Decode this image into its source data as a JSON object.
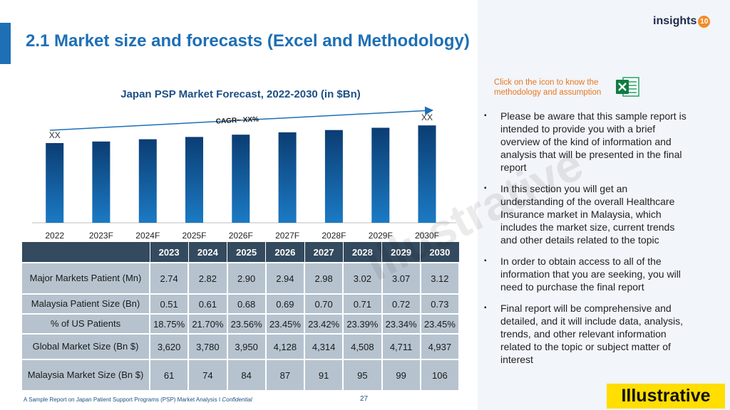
{
  "page": {
    "title": "2.1 Market size and forecasts (Excel and Methodology)",
    "logo_text": "insights",
    "logo_badge": "10",
    "footer_text": "A Sample Report on Japan Patient Support Programs (PSP) Market Analysis I ",
    "footer_confidential": "Confidential",
    "page_number": "27",
    "stamp": "Illustrative",
    "watermark": "Illustrative"
  },
  "colors": {
    "accent_blue": "#1e6fb5",
    "bar_top": "#0b3d73",
    "bar_bottom": "#1b7ac4",
    "table_header": "#344a5e",
    "table_cell": "#b6c3cf",
    "note_orange": "#e87722",
    "stamp_yellow": "#ffde00"
  },
  "chart_data": {
    "type": "bar",
    "title": "Japan PSP Market Forecast, 2022-2030 (in $Bn)",
    "categories": [
      "2022",
      "2023F",
      "2024F",
      "2025F",
      "2026F",
      "2027F",
      "2028F",
      "2029F",
      "2030F"
    ],
    "values": [
      104,
      106,
      109,
      112,
      115,
      118,
      121,
      124,
      127
    ],
    "value_labels": [
      "XX",
      "",
      "",
      "",
      "",
      "",
      "",
      "",
      "XX"
    ],
    "cagr_label": "CAGR~ XX%",
    "ylim": [
      0,
      130
    ],
    "xlabel": "",
    "ylabel": "",
    "grid": false
  },
  "methodology": {
    "note": "Click on the icon to know the methodology and assumption",
    "icon": "excel-icon"
  },
  "bullets": [
    "Please be aware that this sample report is intended to provide you with a brief overview of the kind of information and analysis that will be presented in the final report",
    "In this section you will get an understanding of the overall Healthcare Insurance market in Malaysia, which includes the market size, current trends and other details related to the topic",
    "In order to obtain access to all of the information that you are seeking, you will need to purchase the final report",
    "Final report will be comprehensive and detailed, and it will include data, analysis, trends, and other relevant information related to the topic or subject matter of interest"
  ],
  "table": {
    "headers": [
      "",
      "2023",
      "2024",
      "2025",
      "2026",
      "2027",
      "2028",
      "2029",
      "2030"
    ],
    "rows": [
      {
        "label": "Major Markets Patient (Mn)",
        "values": [
          "2.74",
          "2.82",
          "2.90",
          "2.94",
          "2.98",
          "3.02",
          "3.07",
          "3.12"
        ]
      },
      {
        "label": "Malaysia Patient Size (Bn)",
        "values": [
          "0.51",
          "0.61",
          "0.68",
          "0.69",
          "0.70",
          "0.71",
          "0.72",
          "0.73"
        ]
      },
      {
        "label": "% of US Patients",
        "values": [
          "18.75%",
          "21.70%",
          "23.56%",
          "23.45%",
          "23.42%",
          "23.39%",
          "23.34%",
          "23.45%"
        ]
      },
      {
        "label": "Global Market Size (Bn $)",
        "values": [
          "3,620",
          "3,780",
          "3,950",
          "4,128",
          "4,314",
          "4,508",
          "4,711",
          "4,937"
        ]
      },
      {
        "label": "Malaysia Market Size (Bn $)",
        "values": [
          "61",
          "74",
          "84",
          "87",
          "91",
          "95",
          "99",
          "106"
        ]
      }
    ]
  }
}
